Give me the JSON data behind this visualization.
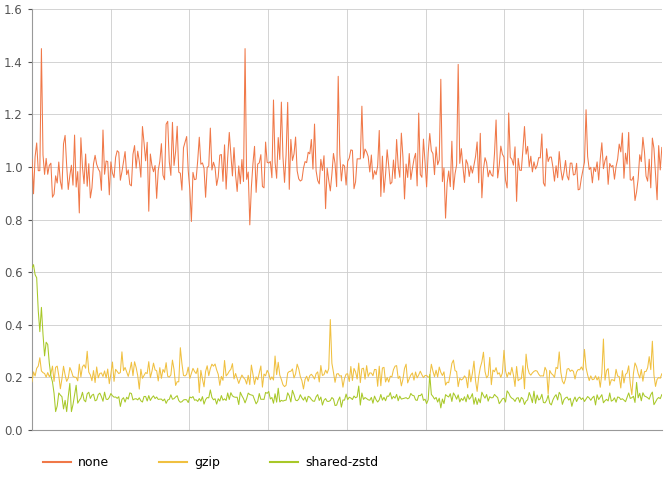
{
  "title": "",
  "xlabel": "",
  "ylabel": "",
  "ylim": [
    0.0,
    1.6
  ],
  "yticks": [
    0.0,
    0.2,
    0.4,
    0.6,
    0.8,
    1.0,
    1.2,
    1.4,
    1.6
  ],
  "xlim_n": 400,
  "none_color": "#f07848",
  "gzip_color": "#f0c040",
  "zstd_color": "#a8c828",
  "background_color": "#ffffff",
  "grid_color": "#cccccc",
  "legend_labels": [
    "none",
    "gzip",
    "shared-zstd"
  ],
  "n_points": 400,
  "seed": 42,
  "figsize": [
    6.66,
    4.99
  ],
  "dpi": 100
}
